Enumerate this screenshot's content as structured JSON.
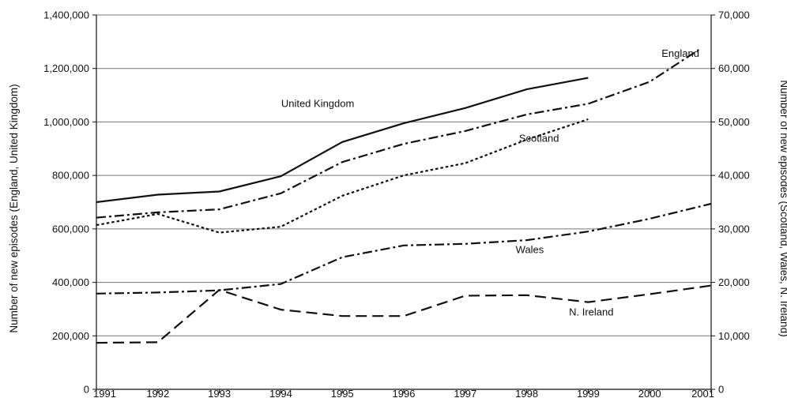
{
  "chart_data": {
    "type": "line",
    "title": "",
    "xlabel": "",
    "ylabel_left": "Number of new episodes (England, United Kingdom)",
    "ylabel_right": "Number of new episodes (Scotland, Wales, N. Ireland)",
    "xlim": [
      1991,
      2001
    ],
    "ylim_left": [
      0,
      1400000
    ],
    "ylim_right": [
      0,
      70000
    ],
    "x_ticks": [
      "1991",
      "1992",
      "1993",
      "1994",
      "1995",
      "1996",
      "1997",
      "1998",
      "1999",
      "2000",
      "2001"
    ],
    "y_ticks_left": [
      "0",
      "200,000",
      "400,000",
      "600,000",
      "800,000",
      "1,000,000",
      "1,200,000",
      "1,400,000"
    ],
    "y_ticks_right": [
      "0",
      "10,000",
      "20,000",
      "30,000",
      "40,000",
      "50,000",
      "60,000",
      "70,000"
    ],
    "grid": true,
    "series": [
      {
        "name": "United Kingdom",
        "axis": "left",
        "style": "solid",
        "points": [
          [
            1991,
            700000
          ],
          [
            1992,
            728000
          ],
          [
            1993,
            740000
          ],
          [
            1994,
            797000
          ],
          [
            1995,
            925000
          ],
          [
            1996,
            995000
          ],
          [
            1997,
            1052000
          ],
          [
            1998,
            1122000
          ],
          [
            1999,
            1165000
          ]
        ]
      },
      {
        "name": "England",
        "axis": "left",
        "style": "dash-dot",
        "points": [
          [
            1991,
            642000
          ],
          [
            1992,
            662000
          ],
          [
            1993,
            673000
          ],
          [
            1994,
            733000
          ],
          [
            1995,
            850000
          ],
          [
            1996,
            918000
          ],
          [
            1997,
            966000
          ],
          [
            1998,
            1028000
          ],
          [
            1999,
            1068000
          ],
          [
            2000,
            1150000
          ],
          [
            2000.8,
            1270000
          ]
        ]
      },
      {
        "name": "Scotland",
        "axis": "right",
        "style": "dotted",
        "points": [
          [
            1991,
            30700
          ],
          [
            1992,
            32800
          ],
          [
            1993,
            29300
          ],
          [
            1994,
            30400
          ],
          [
            1995,
            36200
          ],
          [
            1996,
            40000
          ],
          [
            1997,
            42300
          ],
          [
            1998,
            46700
          ],
          [
            1999,
            50500
          ]
        ]
      },
      {
        "name": "Wales",
        "axis": "right",
        "style": "dash-dot",
        "points": [
          [
            1991,
            17900
          ],
          [
            1992,
            18100
          ],
          [
            1993,
            18500
          ],
          [
            1994,
            19700
          ],
          [
            1995,
            24700
          ],
          [
            1996,
            26900
          ],
          [
            1997,
            27200
          ],
          [
            1998,
            27900
          ],
          [
            1999,
            29500
          ],
          [
            2000,
            31900
          ],
          [
            2001,
            34700
          ]
        ]
      },
      {
        "name": "N. Ireland",
        "axis": "right",
        "style": "dashed",
        "points": [
          [
            1991,
            8700
          ],
          [
            1992,
            8800
          ],
          [
            1993,
            18600
          ],
          [
            1994,
            14900
          ],
          [
            1995,
            13700
          ],
          [
            1996,
            13700
          ],
          [
            1997,
            17500
          ],
          [
            1998,
            17600
          ],
          [
            1999,
            16300
          ],
          [
            2000,
            17800
          ],
          [
            2001,
            19400
          ]
        ]
      }
    ],
    "series_labels": [
      {
        "series": "United Kingdom",
        "text": "United Kingdom",
        "axis": "left",
        "x": 1994.6,
        "y": 1056000
      },
      {
        "series": "England",
        "text": "England",
        "axis": "left",
        "x": 2000.5,
        "y": 1244000
      },
      {
        "series": "Scotland",
        "text": "Scotland",
        "axis": "right",
        "x": 1998.2,
        "y": 46300
      },
      {
        "series": "Wales",
        "text": "Wales",
        "axis": "right",
        "x": 1998.05,
        "y": 25500
      },
      {
        "series": "N. Ireland",
        "text": "N. Ireland",
        "axis": "right",
        "x": 1999.05,
        "y": 13800
      }
    ],
    "colors": {
      "line": "#111111",
      "grid": "#777777",
      "axis": "#111111"
    }
  }
}
